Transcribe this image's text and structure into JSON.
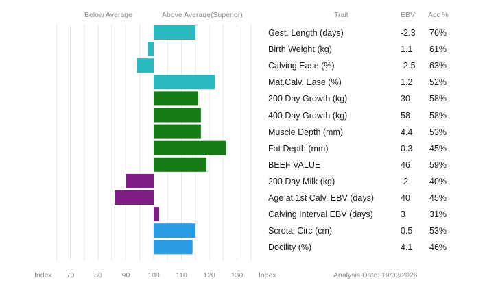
{
  "header": {
    "below_label": "Below Average",
    "above_label": "Above Average(Superior)",
    "trait_label": "Trait",
    "ebv_label": "EBV",
    "acc_label": "Acc %"
  },
  "footer": {
    "index_left": "Index",
    "index_right": "Index",
    "analysis_date": "Analysis Date: 19/03/2026"
  },
  "colors": {
    "teal": "#2bb8bf",
    "green": "#167a16",
    "purple": "#7d1c87",
    "blue": "#2a9be5",
    "grid": "#e6e6e6"
  },
  "chart_data": {
    "type": "bar",
    "orientation": "horizontal",
    "baseline": 100,
    "xlim": [
      65,
      135
    ],
    "xticks": [
      70,
      80,
      90,
      100,
      110,
      120,
      130
    ],
    "grid": true,
    "rows": [
      {
        "trait": "Gest. Length (days)",
        "ebv": "-2.3",
        "acc": "76%",
        "index": 115,
        "color": "teal"
      },
      {
        "trait": "Birth Weight (kg)",
        "ebv": "1.1",
        "acc": "61%",
        "index": 98,
        "color": "teal"
      },
      {
        "trait": "Calving Ease (%)",
        "ebv": "-2.5",
        "acc": "63%",
        "index": 94,
        "color": "teal"
      },
      {
        "trait": "Mat.Calv. Ease (%)",
        "ebv": "1.2",
        "acc": "52%",
        "index": 122,
        "color": "teal"
      },
      {
        "trait": "200 Day Growth (kg)",
        "ebv": "30",
        "acc": "58%",
        "index": 116,
        "color": "green"
      },
      {
        "trait": "400 Day Growth (kg)",
        "ebv": "58",
        "acc": "58%",
        "index": 117,
        "color": "green"
      },
      {
        "trait": "Muscle Depth (mm)",
        "ebv": "4.4",
        "acc": "53%",
        "index": 117,
        "color": "green"
      },
      {
        "trait": "Fat Depth (mm)",
        "ebv": "0.3",
        "acc": "45%",
        "index": 126,
        "color": "green"
      },
      {
        "trait": "BEEF VALUE",
        "ebv": "46",
        "acc": "59%",
        "index": 119,
        "color": "green"
      },
      {
        "trait": "200 Day Milk (kg)",
        "ebv": "-2",
        "acc": "40%",
        "index": 90,
        "color": "purple"
      },
      {
        "trait": "Age at 1st Calv. EBV (days)",
        "ebv": "40",
        "acc": "45%",
        "index": 86,
        "color": "purple"
      },
      {
        "trait": "Calving Interval EBV (days)",
        "ebv": "3",
        "acc": "31%",
        "index": 102,
        "color": "purple"
      },
      {
        "trait": "Scrotal Circ (cm)",
        "ebv": "0.5",
        "acc": "53%",
        "index": 115,
        "color": "blue"
      },
      {
        "trait": "Docility (%)",
        "ebv": "4.1",
        "acc": "46%",
        "index": 114,
        "color": "blue"
      }
    ]
  }
}
